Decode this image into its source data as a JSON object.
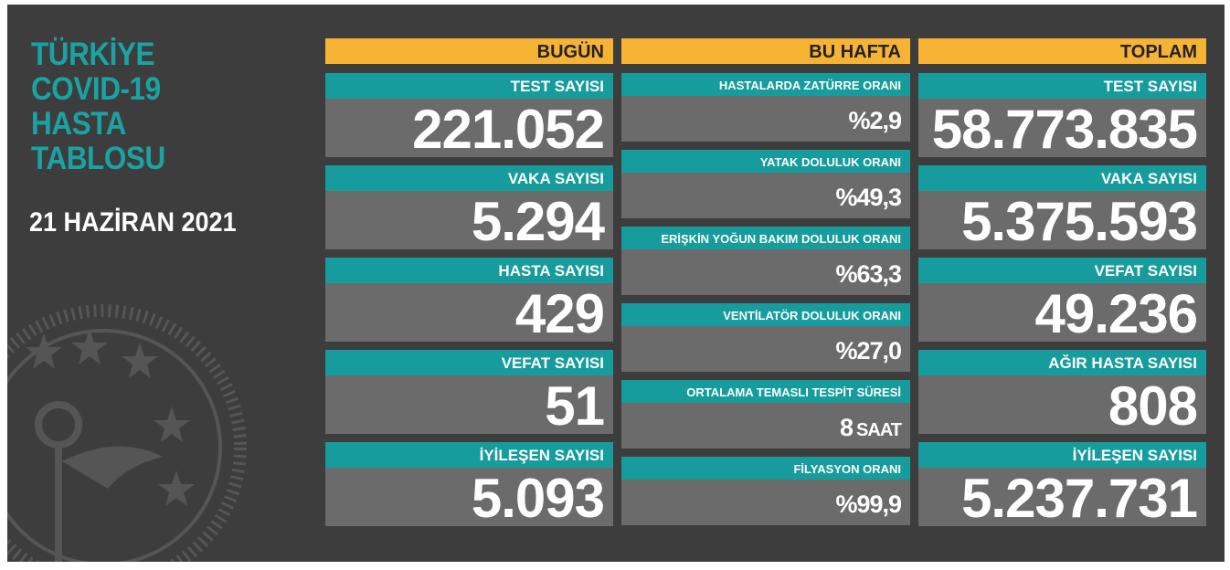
{
  "title": [
    "TÜRKİYE",
    "COVID-19",
    "HASTA",
    "TABLOSU"
  ],
  "date": "21 HAZİRAN 2021",
  "columns": [
    {
      "header": "BUGÜN",
      "items": [
        {
          "label": "TEST SAYISI",
          "value": "221.052"
        },
        {
          "label": "VAKA SAYISI",
          "value": "5.294"
        },
        {
          "label": "HASTA SAYISI",
          "value": "429"
        },
        {
          "label": "VEFAT SAYISI",
          "value": "51"
        },
        {
          "label": "İYİLEŞEN SAYISI",
          "value": "5.093"
        }
      ]
    },
    {
      "header": "BU HAFTA",
      "items": [
        {
          "label": "HASTALARDA ZATÜRRE ORANI",
          "value": "%2,9"
        },
        {
          "label": "YATAK DOLULUK ORANI",
          "value": "%49,3"
        },
        {
          "label": "ERİŞKİN YOĞUN BAKIM DOLULUK ORANI",
          "value": "%63,3"
        },
        {
          "label": "VENTİLATÖR DOLULUK ORANI",
          "value": "%27,0"
        },
        {
          "label": "ORTALAMA TEMASLI TESPİT SÜRESİ",
          "value": "8",
          "unit": "SAAT"
        },
        {
          "label": "FİLYASYON ORANI",
          "value": "%99,9"
        }
      ]
    },
    {
      "header": "TOPLAM",
      "items": [
        {
          "label": "TEST SAYISI",
          "value": "58.773.835"
        },
        {
          "label": "VAKA SAYISI",
          "value": "5.375.593"
        },
        {
          "label": "VEFAT SAYISI",
          "value": "49.236"
        },
        {
          "label": "AĞIR HASTA SAYISI",
          "value": "808"
        },
        {
          "label": "İYİLEŞEN SAYISI",
          "value": "5.237.731"
        }
      ]
    }
  ]
}
